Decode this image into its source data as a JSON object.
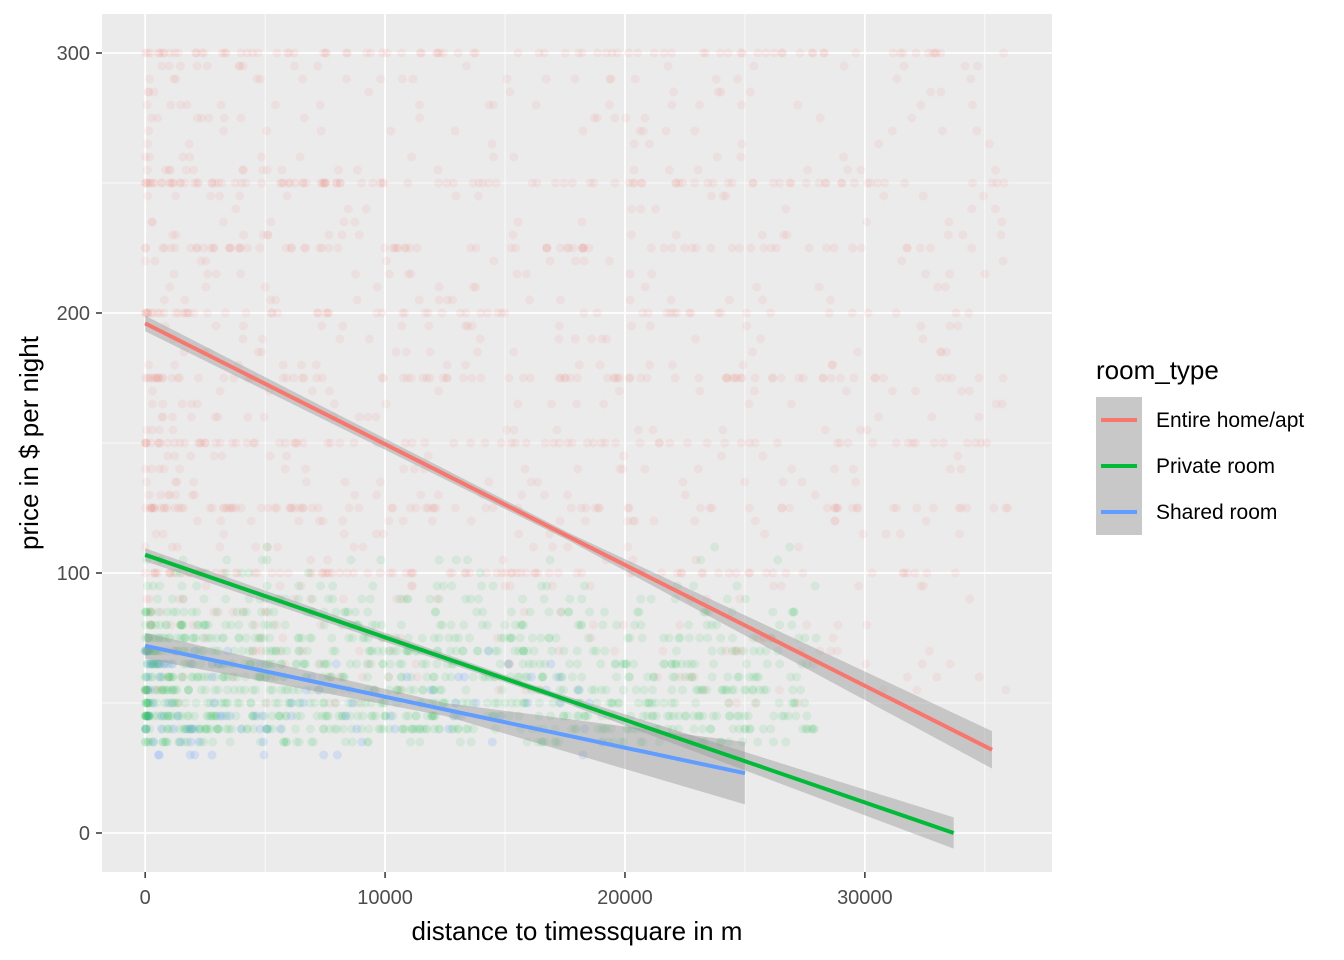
{
  "chart_data": {
    "type": "scatter",
    "xlabel": "distance to timessquare in m",
    "ylabel": "price in $ per night",
    "xlim": [
      -1800,
      37800
    ],
    "ylim": [
      -15,
      315
    ],
    "x_ticks": [
      0,
      10000,
      20000,
      30000
    ],
    "x_tick_labels": [
      "0",
      "10000",
      "20000",
      "30000"
    ],
    "y_ticks": [
      0,
      100,
      200,
      300
    ],
    "y_tick_labels": [
      "0",
      "100",
      "200",
      "300"
    ],
    "grid": true,
    "legend": {
      "title": "room_type",
      "placement": "right"
    },
    "series": [
      {
        "name": "Entire home/apt",
        "color": "#F8766D",
        "fit": {
          "x": [
            0,
            35300
          ],
          "y": [
            196,
            32
          ]
        },
        "points_summary": {
          "x_range": [
            0,
            36000
          ],
          "y_range": [
            10,
            300
          ]
        }
      },
      {
        "name": "Private room",
        "color": "#00BA38",
        "fit": {
          "x": [
            0,
            33700
          ],
          "y": [
            107,
            0
          ]
        },
        "points_summary": {
          "x_range": [
            0,
            28000
          ],
          "y_range": [
            10,
            150
          ]
        }
      },
      {
        "name": "Shared room",
        "color": "#619CFF",
        "fit": {
          "x": [
            0,
            25000
          ],
          "y": [
            72,
            23
          ]
        },
        "points_summary": {
          "x_range": [
            0,
            19000
          ],
          "y_range": [
            20,
            80
          ]
        }
      }
    ]
  }
}
